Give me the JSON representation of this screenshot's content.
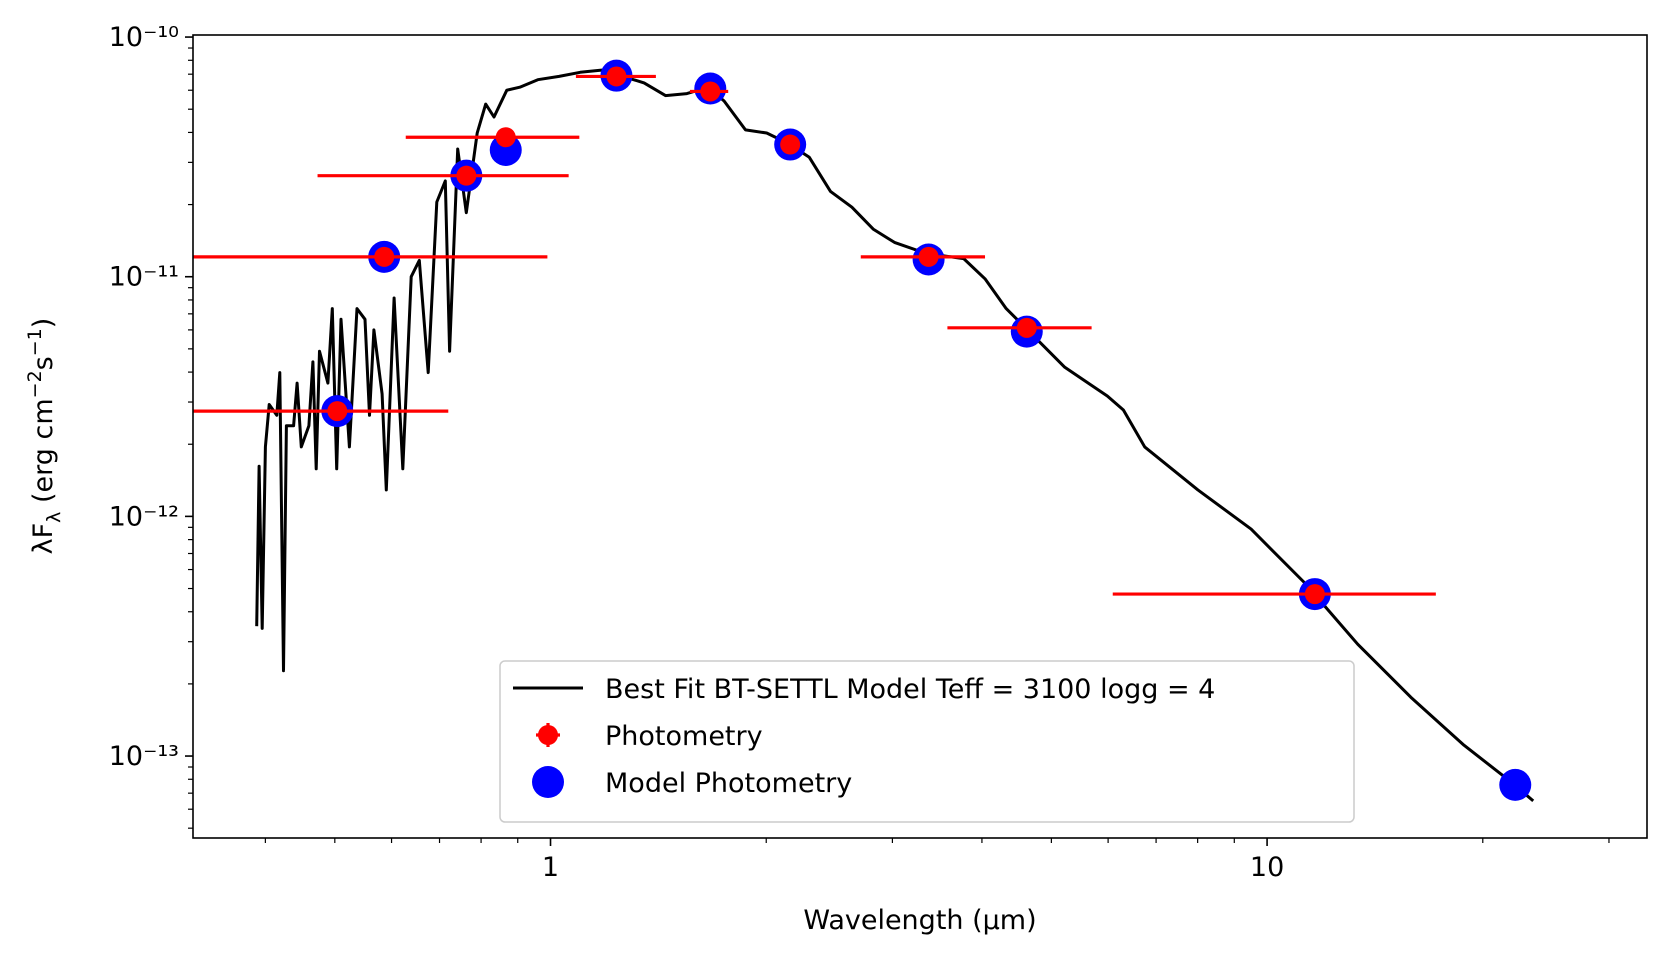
{
  "chart_data": {
    "type": "line",
    "xlabel": "Wavelength (μm)",
    "ylabel": [
      "λF",
      "λ",
      " (erg cm",
      "−2",
      "s",
      "−1",
      ")"
    ],
    "xscale": "log",
    "yscale": "log",
    "xlim": [
      0.317,
      33.9
    ],
    "ylim": [
      4.55e-14,
      1.02e-10
    ],
    "xticks": [
      1,
      10
    ],
    "xminorticks": [
      0.4,
      0.5,
      0.6,
      0.7,
      0.8,
      0.9,
      2,
      3,
      4,
      5,
      6,
      7,
      8,
      9,
      20,
      30
    ],
    "yticks": [
      {
        "value": 1e-13,
        "label": "10⁻¹³"
      },
      {
        "value": 1e-12,
        "label": "10⁻¹²"
      },
      {
        "value": 1e-11,
        "label": "10⁻¹¹"
      },
      {
        "value": 1e-10,
        "label": "10⁻¹⁰"
      }
    ],
    "yminorticks": [
      5e-14,
      6e-14,
      7e-14,
      8e-14,
      9e-14,
      2e-13,
      3e-13,
      4e-13,
      5e-13,
      6e-13,
      7e-13,
      8e-13,
      9e-13,
      2e-12,
      3e-12,
      4e-12,
      5e-12,
      6e-12,
      7e-12,
      8e-12,
      9e-12,
      2e-11,
      3e-11,
      4e-11,
      5e-11,
      6e-11,
      7e-11,
      8e-11,
      9e-11
    ],
    "grid": false,
    "legend": "lower center",
    "series": [
      {
        "name": "Best Fit BT-SETTL Model Teff = 3100 logg = 4",
        "type": "line",
        "color": "#000000",
        "x": [
          0.389,
          0.392,
          0.396,
          0.4,
          0.405,
          0.415,
          0.419,
          0.424,
          0.428,
          0.438,
          0.443,
          0.449,
          0.46,
          0.466,
          0.471,
          0.476,
          0.489,
          0.496,
          0.503,
          0.51,
          0.524,
          0.537,
          0.551,
          0.559,
          0.567,
          0.582,
          0.59,
          0.605,
          0.622,
          0.639,
          0.656,
          0.675,
          0.694,
          0.713,
          0.723,
          0.742,
          0.763,
          0.79,
          0.812,
          0.834,
          0.869,
          0.906,
          0.96,
          1.028,
          1.1,
          1.178,
          1.262,
          1.351,
          1.447,
          1.55,
          1.66,
          1.747,
          1.871,
          2.003,
          2.145,
          2.297,
          2.459,
          2.634,
          2.82,
          3.02,
          3.345,
          3.772,
          4.04,
          4.325,
          4.632,
          5.221,
          5.985,
          6.302,
          6.749,
          8.008,
          9.5,
          11.27,
          13.38,
          15.87,
          18.83,
          21.97,
          23.52
        ],
        "values": [
          3.48e-13,
          1.62e-12,
          3.41e-13,
          1.95e-12,
          2.93e-12,
          2.64e-12,
          3.98e-12,
          2.27e-13,
          2.39e-12,
          2.39e-12,
          3.6e-12,
          1.95e-12,
          2.39e-12,
          4.41e-12,
          1.58e-12,
          4.89e-12,
          3.6e-12,
          7.36e-12,
          1.58e-12,
          6.64e-12,
          1.95e-12,
          7.36e-12,
          6.64e-12,
          2.64e-12,
          6e-12,
          3.24e-12,
          1.29e-12,
          8.15e-12,
          1.58e-12,
          1e-11,
          1.17e-11,
          3.98e-12,
          2.05e-11,
          2.51e-11,
          4.89e-12,
          3.41e-11,
          1.85e-11,
          3.98e-11,
          5.25e-11,
          4.64e-11,
          6e-11,
          6.18e-11,
          6.64e-11,
          6.85e-11,
          7.13e-11,
          7.28e-11,
          6.85e-11,
          6.44e-11,
          5.7e-11,
          5.81e-11,
          6.18e-11,
          5.41e-11,
          4.1e-11,
          3.98e-11,
          3.6e-11,
          3.15e-11,
          2.27e-11,
          1.95e-11,
          1.58e-11,
          1.39e-11,
          1.25e-11,
          1.19e-11,
          9.8e-12,
          7.36e-12,
          6e-12,
          4.19e-12,
          3.18e-12,
          2.78e-12,
          1.95e-12,
          1.29e-12,
          8.85e-13,
          5.3e-13,
          2.93e-13,
          1.76e-13,
          1.11e-13,
          7.74e-14,
          6.5e-14
        ]
      },
      {
        "name": "Photometry",
        "type": "errorbar",
        "color": "#ff0000",
        "x": [
          0.504,
          0.586,
          0.763,
          0.866,
          1.236,
          1.671,
          2.16,
          3.37,
          4.62,
          11.66,
          null
        ],
        "values": [
          2.75e-12,
          1.21e-11,
          2.64e-11,
          3.82e-11,
          6.85e-11,
          5.93e-11,
          3.56e-11,
          1.21e-11,
          6.12e-12,
          4.74e-13,
          null
        ],
        "x_low": [
          0.3,
          0.25,
          0.473,
          0.628,
          1.085,
          1.565,
          null,
          2.71,
          3.58,
          6.09,
          null
        ],
        "x_high": [
          0.72,
          0.99,
          1.06,
          1.097,
          1.403,
          1.77,
          null,
          4.04,
          5.69,
          17.2,
          null
        ]
      },
      {
        "name": "Model Photometry",
        "type": "scatter",
        "color": "#0000ff",
        "x": [
          0.504,
          0.586,
          0.763,
          0.866,
          1.236,
          1.671,
          2.16,
          3.37,
          4.62,
          11.66,
          22.2
        ],
        "values": [
          2.75e-12,
          1.21e-11,
          2.64e-11,
          3.38e-11,
          6.9e-11,
          6.1e-11,
          3.56e-11,
          1.18e-11,
          5.9e-12,
          4.74e-13,
          7.58e-14
        ]
      }
    ]
  }
}
